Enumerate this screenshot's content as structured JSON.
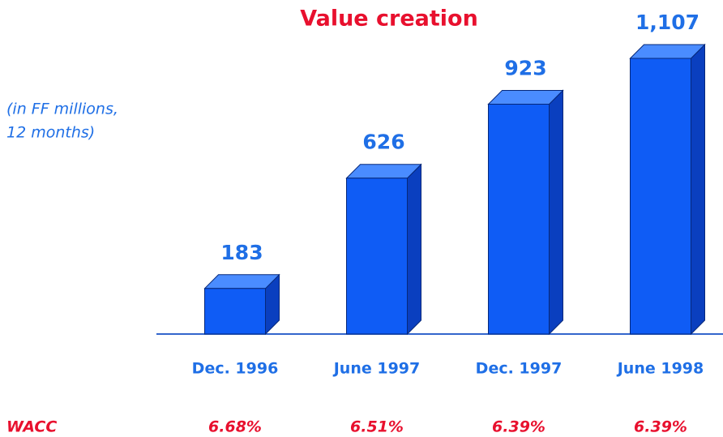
{
  "chart_data": {
    "type": "bar3d",
    "title": "Value creation",
    "subtitle": [
      "(in FF millions,",
      "12 months)"
    ],
    "categories": [
      "Dec. 1996",
      "June 1997",
      "Dec. 1997",
      "June 1998"
    ],
    "values": [
      183,
      626,
      923,
      1107
    ],
    "value_labels": [
      "183",
      "626",
      "923",
      "1,107"
    ],
    "color": "#0f5cf5",
    "wacc": {
      "label": "WACC",
      "values": [
        6.68,
        6.51,
        6.39,
        6.39
      ],
      "value_labels": [
        "6.68%",
        "6.51%",
        "6.39%",
        "6.39%"
      ]
    }
  }
}
